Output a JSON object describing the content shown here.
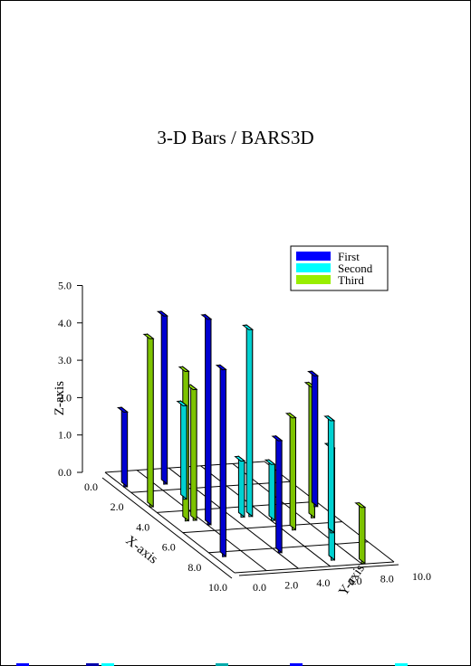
{
  "chart_data": {
    "type": "bar3d",
    "title": "3-D Bars / BARS3D",
    "xlabel": "X-axis",
    "ylabel": "Y-axis",
    "zlabel": "Z-axis",
    "x_ticks": [
      "0.0",
      "2.0",
      "4.0",
      "6.0",
      "8.0",
      "10.0"
    ],
    "y_ticks": [
      "0.0",
      "2.0",
      "4.0",
      "6.0",
      "8.0",
      "10.0"
    ],
    "z_ticks": [
      "0.0",
      "1.0",
      "2.0",
      "3.0",
      "4.0",
      "5.0"
    ],
    "xlim": [
      0,
      10
    ],
    "ylim": [
      0,
      10
    ],
    "zlim": [
      0,
      5
    ],
    "legend": {
      "position": "top-right"
    },
    "series": [
      {
        "name": "First",
        "color": "#0000ff",
        "points": [
          {
            "x": 1.0,
            "y": 0.0,
            "z": 2.0
          },
          {
            "x": 1.0,
            "y": 2.5,
            "z": 4.5
          },
          {
            "x": 5.0,
            "y": 2.0,
            "z": 5.5
          },
          {
            "x": 8.0,
            "y": 0.5,
            "z": 5.0
          },
          {
            "x": 8.0,
            "y": 4.0,
            "z": 3.0
          },
          {
            "x": 4.0,
            "y": 9.5,
            "z": 3.5
          }
        ]
      },
      {
        "name": "Second",
        "color": "#00ffff",
        "points": [
          {
            "x": 2.5,
            "y": 2.5,
            "z": 2.5
          },
          {
            "x": 4.5,
            "y": 4.5,
            "z": 1.5
          },
          {
            "x": 4.5,
            "y": 5.0,
            "z": 5.0
          },
          {
            "x": 5.0,
            "y": 6.0,
            "z": 1.5
          },
          {
            "x": 9.0,
            "y": 6.5,
            "z": 3.0
          },
          {
            "x": 6.5,
            "y": 8.5,
            "z": 3.0
          }
        ]
      },
      {
        "name": "Third",
        "color": "#99ee00",
        "points": [
          {
            "x": 3.0,
            "y": 0.0,
            "z": 4.5
          },
          {
            "x": 4.5,
            "y": 1.0,
            "z": 4.0
          },
          {
            "x": 4.5,
            "y": 1.5,
            "z": 3.5
          },
          {
            "x": 6.0,
            "y": 6.5,
            "z": 3.0
          },
          {
            "x": 5.0,
            "y": 8.5,
            "z": 3.5
          },
          {
            "x": 9.5,
            "y": 8.0,
            "z": 1.5
          }
        ]
      }
    ]
  },
  "bottom_strip_colors": [
    "#0000ff",
    "#0000aa",
    "#00ffff",
    "#00aaaa",
    "#0000ff",
    "#00ffff"
  ]
}
